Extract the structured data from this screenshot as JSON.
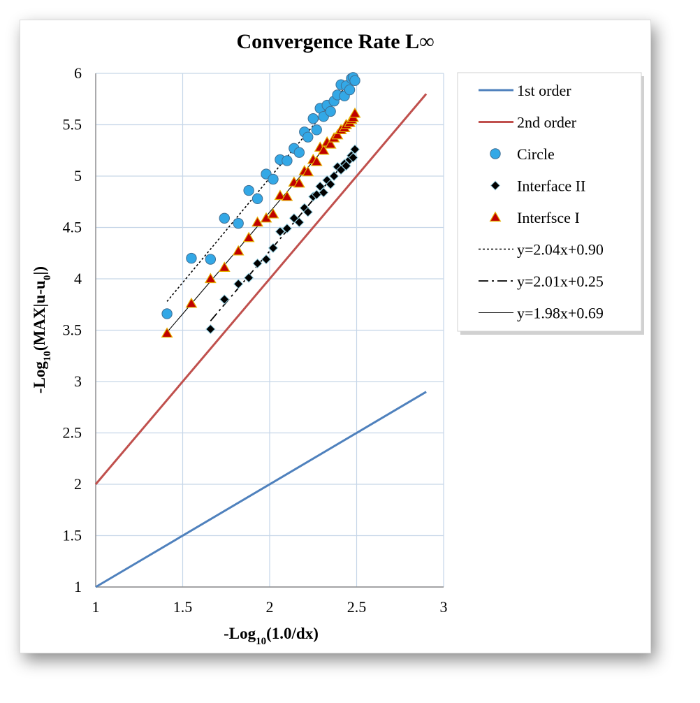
{
  "chart_data": {
    "type": "scatter",
    "title": "Convergence Rate L∞",
    "xlabel": "-Log10(1.0/dx)",
    "ylabel": "-Log10(MAX|u-u0|)",
    "xlim": [
      1,
      3
    ],
    "ylim": [
      1,
      6
    ],
    "x_ticks": [
      "1",
      "1.5",
      "2",
      "2.5",
      "3"
    ],
    "y_ticks": [
      "1",
      "1.5",
      "2",
      "2.5",
      "3",
      "3.5",
      "4",
      "4.5",
      "5",
      "5.5",
      "6"
    ],
    "grid": true,
    "legend_position": "right",
    "series": [
      {
        "name": "1st order",
        "kind": "line",
        "color": "#4f81bd",
        "dash": "solid",
        "x": [
          1,
          2.9
        ],
        "y": [
          1,
          2.9
        ]
      },
      {
        "name": "2nd order",
        "kind": "line",
        "color": "#c0504d",
        "dash": "solid",
        "x": [
          1,
          2.9
        ],
        "y": [
          2,
          5.8
        ]
      },
      {
        "name": "Circle",
        "kind": "marker",
        "marker": "circle",
        "color": "#33a8e6",
        "x": [
          1.41,
          1.55,
          1.66,
          1.74,
          1.82,
          1.88,
          1.93,
          1.98,
          2.02,
          2.06,
          2.1,
          2.14,
          2.17,
          2.2,
          2.22,
          2.25,
          2.27,
          2.29,
          2.31,
          2.33,
          2.35,
          2.37,
          2.39,
          2.41,
          2.43,
          2.44,
          2.46,
          2.47,
          2.48,
          2.49
        ],
        "y": [
          3.66,
          4.2,
          4.19,
          4.59,
          4.54,
          4.86,
          4.78,
          5.02,
          4.97,
          5.16,
          5.15,
          5.27,
          5.23,
          5.43,
          5.38,
          5.56,
          5.45,
          5.66,
          5.58,
          5.69,
          5.63,
          5.73,
          5.79,
          5.89,
          5.78,
          5.88,
          5.84,
          5.95,
          5.96,
          5.93
        ]
      },
      {
        "name": "Interface II",
        "kind": "marker",
        "marker": "diamond",
        "color": "#000000",
        "x": [
          1.66,
          1.74,
          1.82,
          1.88,
          1.93,
          1.98,
          2.02,
          2.06,
          2.1,
          2.14,
          2.17,
          2.2,
          2.22,
          2.25,
          2.27,
          2.29,
          2.31,
          2.33,
          2.35,
          2.37,
          2.39,
          2.41,
          2.43,
          2.44,
          2.46,
          2.47,
          2.48,
          2.49
        ],
        "y": [
          3.51,
          3.8,
          3.95,
          4.01,
          4.15,
          4.19,
          4.3,
          4.46,
          4.49,
          4.59,
          4.55,
          4.69,
          4.65,
          4.8,
          4.82,
          4.9,
          4.84,
          4.96,
          4.92,
          5.0,
          5.09,
          5.06,
          5.12,
          5.1,
          5.16,
          5.2,
          5.18,
          5.26
        ]
      },
      {
        "name": "Interfsce I",
        "kind": "marker",
        "marker": "triangle",
        "color": "#c00000",
        "fill": "#e5b100",
        "x": [
          1.41,
          1.55,
          1.66,
          1.74,
          1.82,
          1.88,
          1.93,
          1.98,
          2.02,
          2.06,
          2.1,
          2.14,
          2.17,
          2.2,
          2.22,
          2.25,
          2.27,
          2.29,
          2.31,
          2.33,
          2.35,
          2.37,
          2.39,
          2.41,
          2.43,
          2.44,
          2.46,
          2.47,
          2.48,
          2.49
        ],
        "y": [
          3.47,
          3.76,
          4.0,
          4.11,
          4.27,
          4.4,
          4.55,
          4.59,
          4.63,
          4.81,
          4.8,
          4.94,
          4.93,
          5.05,
          5.04,
          5.16,
          5.14,
          5.28,
          5.25,
          5.33,
          5.31,
          5.37,
          5.4,
          5.45,
          5.47,
          5.5,
          5.52,
          5.55,
          5.57,
          5.61
        ]
      },
      {
        "name": "y=2.04x+0.90",
        "kind": "line",
        "color": "#000000",
        "dash": "dotted",
        "x": [
          1.41,
          2.5
        ],
        "y": [
          3.78,
          6.0
        ]
      },
      {
        "name": "y=2.01x+0.25",
        "kind": "line",
        "color": "#000000",
        "dash": "dashdot",
        "x": [
          1.66,
          2.49
        ],
        "y": [
          3.59,
          5.25
        ]
      },
      {
        "name": "y=1.98x+0.69",
        "kind": "line",
        "color": "#000000",
        "dash": "thin",
        "x": [
          1.41,
          2.49
        ],
        "y": [
          3.48,
          5.62
        ]
      }
    ]
  }
}
